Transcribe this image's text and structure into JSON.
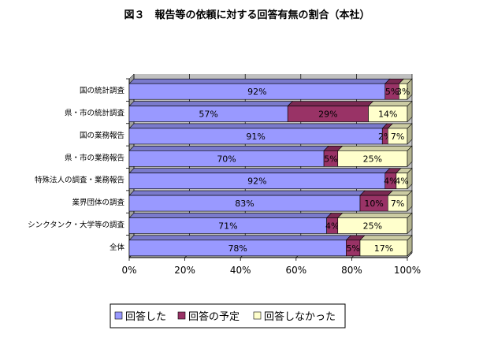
{
  "chart_data": {
    "type": "bar",
    "orientation": "horizontal",
    "stacked": "percent",
    "title": "図３　報告等の依頼に対する回答有無の割合（本社）",
    "categories": [
      "国の統計調査",
      "県・市の統計調査",
      "国の業務報告",
      "県・市の業務報告",
      "特殊法人の調査・業務報告",
      "業界団体の調査",
      "シンクタンク・大学等の調査",
      "全体"
    ],
    "series": [
      {
        "name": "回答した",
        "values": [
          92,
          57,
          91,
          70,
          92,
          83,
          71,
          78
        ],
        "labels": [
          "92%",
          "57%",
          "91%",
          "70%",
          "92%",
          "83%",
          "71%",
          "78%"
        ],
        "color": "#9999ff"
      },
      {
        "name": "回答の予定",
        "values": [
          5,
          29,
          2,
          5,
          4,
          10,
          4,
          5
        ],
        "labels": [
          "5%",
          "29%",
          "2%",
          "5%",
          "4%",
          "10%",
          "4%",
          "5%"
        ],
        "color": "#993366"
      },
      {
        "name": "回答しなかった",
        "values": [
          3,
          14,
          7,
          25,
          4,
          7,
          25,
          17
        ],
        "labels": [
          "3%",
          "14%",
          "7%",
          "25%",
          "4%",
          "7%",
          "25%",
          "17%"
        ],
        "color": "#ffffcc"
      }
    ],
    "xlim": [
      0,
      100
    ],
    "xticks": [
      "0%",
      "20%",
      "40%",
      "60%",
      "80%",
      "100%"
    ],
    "grid": true,
    "legend": "bottom"
  }
}
